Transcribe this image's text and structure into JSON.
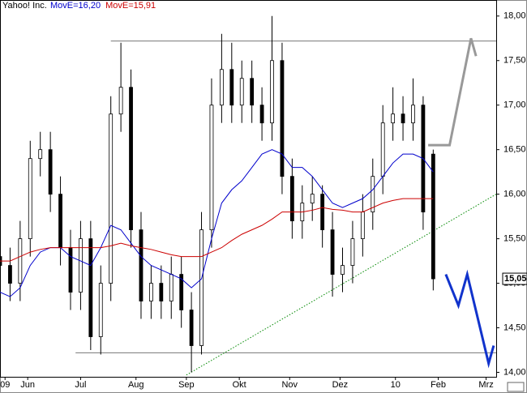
{
  "chart_data": {
    "type": "candlestick",
    "title": "Yahoo! Inc.",
    "x": [
      0,
      4,
      8,
      12,
      16,
      20,
      24,
      28,
      32,
      36,
      40,
      44,
      48,
      52,
      56,
      60,
      64,
      68,
      72,
      76,
      80,
      84,
      88,
      92,
      96,
      100,
      104,
      108,
      112,
      116,
      120,
      124,
      128,
      132,
      136,
      140,
      144,
      148,
      152,
      156,
      160,
      164,
      168,
      172
    ],
    "open": [
      15.3,
      15.2,
      15.0,
      15.5,
      16.4,
      16.5,
      16.0,
      15.4,
      14.9,
      15.5,
      14.4,
      15.0,
      16.9,
      17.2,
      15.6,
      14.8,
      15.0,
      14.8,
      15.1,
      14.7,
      14.3,
      15.6,
      17.0,
      17.4,
      17.0,
      17.3,
      17.0,
      16.8,
      17.5,
      16.2,
      15.7,
      15.9,
      16.0,
      15.6,
      15.1,
      15.2,
      15.5,
      15.8,
      16.2,
      16.8,
      16.9,
      16.8,
      17.0,
      16.45
    ],
    "high": [
      15.5,
      15.4,
      15.7,
      16.6,
      16.7,
      16.7,
      16.2,
      15.6,
      15.7,
      15.7,
      15.2,
      17.1,
      17.7,
      17.4,
      15.8,
      15.2,
      15.2,
      15.3,
      15.3,
      14.9,
      15.8,
      17.3,
      17.8,
      17.7,
      17.5,
      17.5,
      17.2,
      18.0,
      17.7,
      16.4,
      16.1,
      16.2,
      16.1,
      15.8,
      15.4,
      15.7,
      16.0,
      16.4,
      17.0,
      17.2,
      17.1,
      17.3,
      17.1,
      16.5
    ],
    "low": [
      15.0,
      14.8,
      14.8,
      15.3,
      16.2,
      15.8,
      15.2,
      14.7,
      14.7,
      14.25,
      14.2,
      14.8,
      16.7,
      15.4,
      14.6,
      14.6,
      14.6,
      14.6,
      14.5,
      14.0,
      14.2,
      15.4,
      16.8,
      16.8,
      16.8,
      16.8,
      16.6,
      16.6,
      16.0,
      15.5,
      15.5,
      15.7,
      15.4,
      14.85,
      14.9,
      15.0,
      15.3,
      15.6,
      16.0,
      16.6,
      16.6,
      16.6,
      15.6,
      14.92
    ],
    "close": [
      15.2,
      15.0,
      15.5,
      16.4,
      16.5,
      16.0,
      15.4,
      14.9,
      15.5,
      14.4,
      15.0,
      16.9,
      17.2,
      15.6,
      14.8,
      15.0,
      14.8,
      15.1,
      14.7,
      14.3,
      15.6,
      17.0,
      17.4,
      17.0,
      17.3,
      17.0,
      16.8,
      17.5,
      16.2,
      15.7,
      15.9,
      16.0,
      15.6,
      15.1,
      15.2,
      15.5,
      15.8,
      16.2,
      16.8,
      16.9,
      16.8,
      17.0,
      15.8,
      15.05
    ],
    "up_color": "#ffffff",
    "down_color": "#000000",
    "candle_edge": "#000000",
    "series": [
      {
        "name": "MovE=16,20",
        "color": "#0000cc",
        "values": [
          14.9,
          14.85,
          14.95,
          15.2,
          15.35,
          15.4,
          15.4,
          15.3,
          15.25,
          15.2,
          15.4,
          15.65,
          15.6,
          15.45,
          15.3,
          15.2,
          15.15,
          15.1,
          15.05,
          14.95,
          15.05,
          15.5,
          15.9,
          16.05,
          16.15,
          16.3,
          16.45,
          16.5,
          16.45,
          16.3,
          16.3,
          16.2,
          16.05,
          15.9,
          15.85,
          15.9,
          15.95,
          16.05,
          16.2,
          16.35,
          16.45,
          16.45,
          16.4,
          16.25
        ]
      },
      {
        "name": "MovE=15,91",
        "color": "#cc0000",
        "values": [
          15.25,
          15.25,
          15.3,
          15.35,
          15.38,
          15.4,
          15.4,
          15.4,
          15.4,
          15.4,
          15.4,
          15.42,
          15.45,
          15.42,
          15.4,
          15.38,
          15.35,
          15.32,
          15.3,
          15.3,
          15.3,
          15.35,
          15.4,
          15.48,
          15.55,
          15.6,
          15.65,
          15.72,
          15.8,
          15.8,
          15.8,
          15.82,
          15.85,
          15.83,
          15.82,
          15.8,
          15.8,
          15.85,
          15.9,
          15.93,
          15.95,
          15.95,
          15.95,
          15.95
        ]
      }
    ],
    "last_price": {
      "value": 15.05,
      "label": "15,05"
    },
    "xlim": [
      0,
      197
    ],
    "ylim": [
      13.95,
      18.18
    ],
    "xticks": [
      {
        "value": 2,
        "label": "09"
      },
      {
        "value": 11,
        "label": "Jun"
      },
      {
        "value": 32,
        "label": "Jul"
      },
      {
        "value": 54,
        "label": "Aug"
      },
      {
        "value": 74,
        "label": "Sep"
      },
      {
        "value": 95,
        "label": "Okt"
      },
      {
        "value": 115,
        "label": "Nov"
      },
      {
        "value": 135,
        "label": "Dez"
      },
      {
        "value": 157,
        "label": "10"
      },
      {
        "value": 174,
        "label": "Feb"
      },
      {
        "value": 193,
        "label": "Mrz"
      }
    ],
    "yticks": [
      {
        "value": 14,
        "label": "14,00"
      },
      {
        "value": 14.5,
        "label": "14,50"
      },
      {
        "value": 15,
        "label": "15,00"
      },
      {
        "value": 15.5,
        "label": "15,50"
      },
      {
        "value": 16,
        "label": "16,00"
      },
      {
        "value": 16.5,
        "label": "16,50"
      },
      {
        "value": 17,
        "label": "17,00"
      },
      {
        "value": 17.5,
        "label": "17,50"
      },
      {
        "value": 18,
        "label": "18,00"
      }
    ],
    "drawings": [
      {
        "color": "#777777",
        "style": "solid",
        "width": 1,
        "x": [
          44,
          197
        ],
        "y": [
          17.72,
          17.72
        ]
      },
      {
        "color": "#777777",
        "style": "solid",
        "width": 1,
        "x": [
          30,
          197
        ],
        "y": [
          14.22,
          14.22
        ]
      },
      {
        "color": "#008800",
        "style": "dotted",
        "width": 1,
        "x": [
          74,
          197
        ],
        "y": [
          13.97,
          16.0
        ]
      },
      {
        "color": "#999999",
        "style": "solid",
        "width": 3,
        "x": [
          170,
          178.5,
          187,
          189
        ],
        "y": [
          16.55,
          16.55,
          17.75,
          17.55
        ]
      },
      {
        "color": "#1133cc",
        "style": "solid",
        "width": 3,
        "x": [
          177,
          182,
          185.5,
          194,
          196
        ],
        "y": [
          15.1,
          14.75,
          15.1,
          14.1,
          14.3
        ]
      }
    ]
  }
}
